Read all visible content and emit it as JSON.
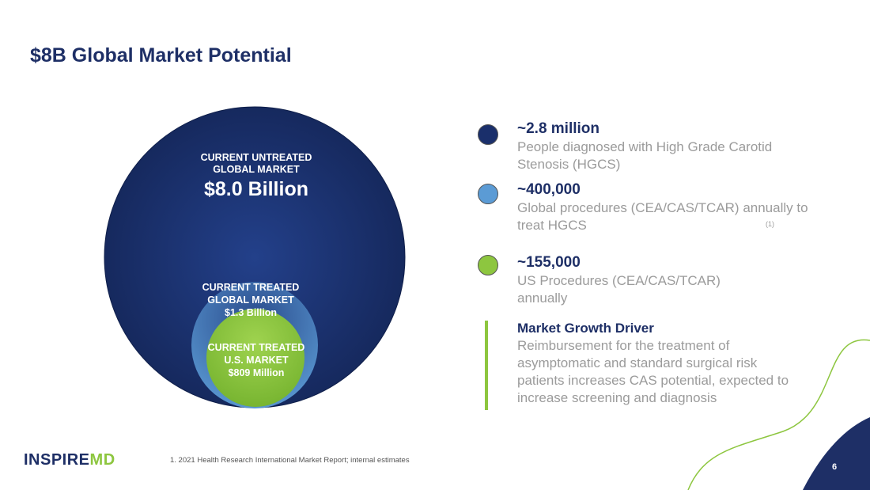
{
  "title": "$8B Global Market Potential",
  "circles": {
    "untreated_global": {
      "label": "CURRENT UNTREATED GLOBAL MARKET",
      "value": "$8.0 Billion",
      "color": "#1a2f6b"
    },
    "treated_global": {
      "label": "CURRENT TREATED GLOBAL MARKET",
      "value": "$1.3 Billion",
      "color": "#5b9bd5"
    },
    "treated_us": {
      "label": "CURRENT TREATED U.S. MARKET",
      "value": "$809 Million",
      "color": "#8dc63f"
    }
  },
  "stats": [
    {
      "value": "~2.8 million",
      "description": "People diagnosed with High Grade Carotid Stenosis (HGCS)",
      "color": "#1a2f6b"
    },
    {
      "value": "~400,000",
      "description": "Global procedures (CEA/CAS/TCAR) annually to treat HGCS",
      "footnote_mark": "(1)",
      "color": "#5b9bd5"
    },
    {
      "value": "~155,000",
      "description": "US Procedures (CEA/CAS/TCAR) annually",
      "color": "#8dc63f"
    }
  ],
  "growth_driver": {
    "title": "Market Growth Driver",
    "description": "Reimbursement for the treatment of asymptomatic and standard surgical risk patients increases CAS potential, expected to increase screening and diagnosis"
  },
  "logo": {
    "part1": "INSPIRE",
    "part2": "MD"
  },
  "footnote": "1. 2021 Health Research International Market Report; internal estimates",
  "page_number": "6",
  "colors": {
    "navy": "#1e2f66",
    "green": "#8dc63f",
    "blue": "#5b9bd5",
    "gray": "#9b9b9b"
  }
}
